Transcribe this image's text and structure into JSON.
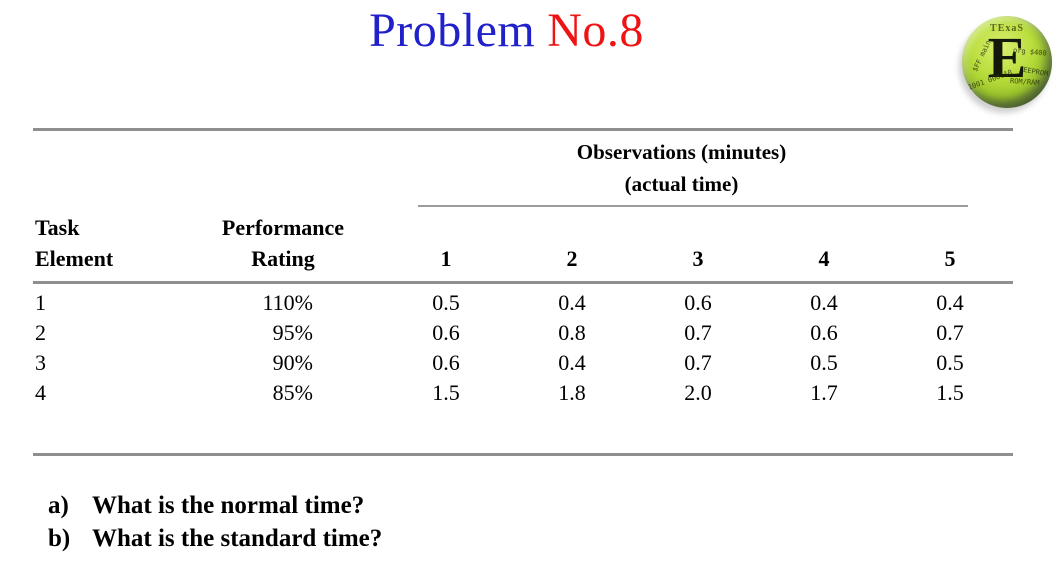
{
  "colors": {
    "title-blue": "#2121cc",
    "title-red": "#ee1414",
    "table-line": "#8f8f8f",
    "table-line-light": "#9c9c9c"
  },
  "title": {
    "word1": "Problem",
    "word2": "No.8"
  },
  "logo": {
    "brand": "TExaS",
    "letter": "E",
    "fragments": [
      "org $400",
      "EEPROM",
      "ROM/RAM",
      "1001 000110",
      "$FF main"
    ]
  },
  "table": {
    "obs_header_line1": "Observations (minutes)",
    "obs_header_line2": "(actual time)",
    "col1_header_line1": "Task",
    "col1_header_line2": "Element",
    "col2_header_line1": "Performance",
    "col2_header_line2": "Rating",
    "obs_columns": [
      "1",
      "2",
      "3",
      "4",
      "5"
    ],
    "rows": [
      {
        "task": "1",
        "rating": "110%",
        "obs": [
          "0.5",
          "0.4",
          "0.6",
          "0.4",
          "0.4"
        ]
      },
      {
        "task": "2",
        "rating": "95%",
        "obs": [
          "0.6",
          "0.8",
          "0.7",
          "0.6",
          "0.7"
        ]
      },
      {
        "task": "3",
        "rating": "90%",
        "obs": [
          "0.6",
          "0.4",
          "0.7",
          "0.5",
          "0.5"
        ]
      },
      {
        "task": "4",
        "rating": "85%",
        "obs": [
          "1.5",
          "1.8",
          "2.0",
          "1.7",
          "1.5"
        ]
      }
    ]
  },
  "questions": [
    {
      "label": "a)",
      "text": "What is the normal time?"
    },
    {
      "label": "b)",
      "text": "What is the standard time?"
    }
  ]
}
